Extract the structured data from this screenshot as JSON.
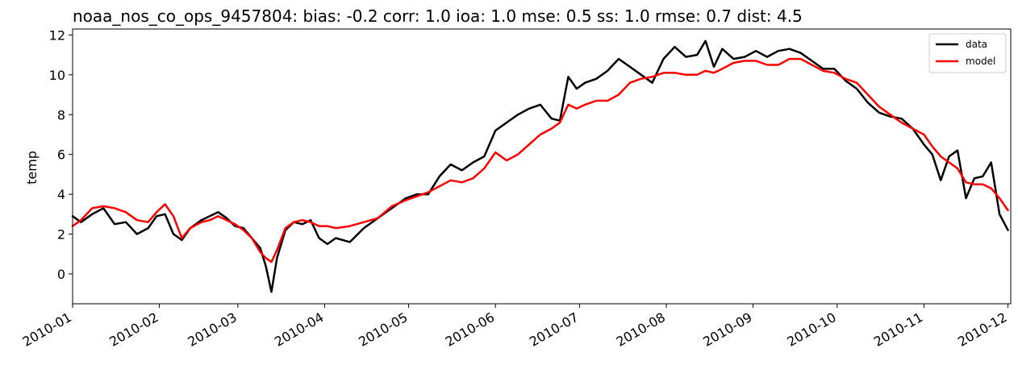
{
  "chart_data": {
    "type": "line",
    "title": "noaa_nos_co_ops_9457804: bias: -0.2  corr: 1.0  ioa: 1.0  mse: 0.5  ss: 1.0  rmse: 0.7  dist: 4.5",
    "xlabel": "",
    "ylabel": "temp",
    "xlim": [
      "2010-01-01",
      "2010-12-02"
    ],
    "ylim": [
      -1.5,
      12.3
    ],
    "x_ticks": [
      "2010-01",
      "2010-02",
      "2010-03",
      "2010-04",
      "2010-05",
      "2010-06",
      "2010-07",
      "2010-08",
      "2010-09",
      "2010-10",
      "2010-11",
      "2010-12"
    ],
    "y_ticks": [
      0,
      2,
      4,
      6,
      8,
      10,
      12
    ],
    "grid": false,
    "legend_position": "top-right",
    "series": [
      {
        "name": "data",
        "color": "#000000",
        "x": [
          "2010-01-01",
          "2010-01-04",
          "2010-01-08",
          "2010-01-12",
          "2010-01-16",
          "2010-01-20",
          "2010-01-24",
          "2010-01-28",
          "2010-01-31",
          "2010-02-03",
          "2010-02-06",
          "2010-02-09",
          "2010-02-12",
          "2010-02-16",
          "2010-02-19",
          "2010-02-22",
          "2010-02-25",
          "2010-02-28",
          "2010-03-03",
          "2010-03-06",
          "2010-03-09",
          "2010-03-11",
          "2010-03-13",
          "2010-03-15",
          "2010-03-18",
          "2010-03-21",
          "2010-03-24",
          "2010-03-27",
          "2010-03-30",
          "2010-04-02",
          "2010-04-05",
          "2010-04-10",
          "2010-04-15",
          "2010-04-20",
          "2010-04-25",
          "2010-04-30",
          "2010-05-04",
          "2010-05-08",
          "2010-05-12",
          "2010-05-16",
          "2010-05-20",
          "2010-05-24",
          "2010-05-28",
          "2010-06-01",
          "2010-06-05",
          "2010-06-09",
          "2010-06-13",
          "2010-06-17",
          "2010-06-21",
          "2010-06-24",
          "2010-06-27",
          "2010-06-30",
          "2010-07-03",
          "2010-07-07",
          "2010-07-11",
          "2010-07-15",
          "2010-07-19",
          "2010-07-23",
          "2010-07-27",
          "2010-07-31",
          "2010-08-04",
          "2010-08-08",
          "2010-08-12",
          "2010-08-15",
          "2010-08-18",
          "2010-08-21",
          "2010-08-25",
          "2010-08-29",
          "2010-09-02",
          "2010-09-06",
          "2010-09-10",
          "2010-09-14",
          "2010-09-18",
          "2010-09-22",
          "2010-09-26",
          "2010-09-30",
          "2010-10-04",
          "2010-10-08",
          "2010-10-12",
          "2010-10-16",
          "2010-10-20",
          "2010-10-24",
          "2010-10-28",
          "2010-11-01",
          "2010-11-04",
          "2010-11-07",
          "2010-11-10",
          "2010-11-13",
          "2010-11-16",
          "2010-11-19",
          "2010-11-22",
          "2010-11-25",
          "2010-11-28",
          "2010-12-01"
        ],
        "values": [
          2.9,
          2.6,
          3.0,
          3.3,
          2.5,
          2.6,
          2.0,
          2.3,
          2.9,
          3.0,
          2.0,
          1.7,
          2.3,
          2.7,
          2.9,
          3.1,
          2.8,
          2.4,
          2.3,
          1.8,
          1.3,
          0.4,
          -0.9,
          0.8,
          2.2,
          2.6,
          2.5,
          2.7,
          1.8,
          1.5,
          1.8,
          1.6,
          2.3,
          2.8,
          3.3,
          3.8,
          4.0,
          4.0,
          4.9,
          5.5,
          5.2,
          5.6,
          5.9,
          7.2,
          7.6,
          8.0,
          8.3,
          8.5,
          7.8,
          7.7,
          9.9,
          9.3,
          9.6,
          9.8,
          10.2,
          10.8,
          10.4,
          10.0,
          9.6,
          10.8,
          11.4,
          10.9,
          11.0,
          11.7,
          10.4,
          11.3,
          10.8,
          10.9,
          11.2,
          10.9,
          11.2,
          11.3,
          11.1,
          10.7,
          10.3,
          10.3,
          9.7,
          9.3,
          8.6,
          8.1,
          7.9,
          7.8,
          7.3,
          6.5,
          6.0,
          4.7,
          5.9,
          6.2,
          3.8,
          4.8,
          4.9,
          5.6,
          3.0,
          2.2
        ]
      },
      {
        "name": "model",
        "color": "#ff0000",
        "x": [
          "2010-01-01",
          "2010-01-04",
          "2010-01-08",
          "2010-01-12",
          "2010-01-16",
          "2010-01-20",
          "2010-01-24",
          "2010-01-28",
          "2010-01-31",
          "2010-02-03",
          "2010-02-06",
          "2010-02-09",
          "2010-02-12",
          "2010-02-16",
          "2010-02-19",
          "2010-02-22",
          "2010-02-25",
          "2010-02-28",
          "2010-03-03",
          "2010-03-06",
          "2010-03-09",
          "2010-03-11",
          "2010-03-13",
          "2010-03-15",
          "2010-03-18",
          "2010-03-21",
          "2010-03-24",
          "2010-03-27",
          "2010-03-30",
          "2010-04-02",
          "2010-04-05",
          "2010-04-10",
          "2010-04-15",
          "2010-04-20",
          "2010-04-25",
          "2010-04-30",
          "2010-05-04",
          "2010-05-08",
          "2010-05-12",
          "2010-05-16",
          "2010-05-20",
          "2010-05-24",
          "2010-05-28",
          "2010-06-01",
          "2010-06-05",
          "2010-06-09",
          "2010-06-13",
          "2010-06-17",
          "2010-06-21",
          "2010-06-24",
          "2010-06-27",
          "2010-06-30",
          "2010-07-03",
          "2010-07-07",
          "2010-07-11",
          "2010-07-15",
          "2010-07-19",
          "2010-07-23",
          "2010-07-27",
          "2010-07-31",
          "2010-08-04",
          "2010-08-08",
          "2010-08-12",
          "2010-08-15",
          "2010-08-18",
          "2010-08-21",
          "2010-08-25",
          "2010-08-29",
          "2010-09-02",
          "2010-09-06",
          "2010-09-10",
          "2010-09-14",
          "2010-09-18",
          "2010-09-22",
          "2010-09-26",
          "2010-09-30",
          "2010-10-04",
          "2010-10-08",
          "2010-10-12",
          "2010-10-16",
          "2010-10-20",
          "2010-10-24",
          "2010-10-28",
          "2010-11-01",
          "2010-11-04",
          "2010-11-07",
          "2010-11-10",
          "2010-11-13",
          "2010-11-16",
          "2010-11-19",
          "2010-11-22",
          "2010-11-25",
          "2010-11-28",
          "2010-12-01"
        ],
        "values": [
          2.4,
          2.7,
          3.3,
          3.4,
          3.3,
          3.1,
          2.7,
          2.6,
          3.1,
          3.5,
          2.9,
          1.8,
          2.3,
          2.6,
          2.7,
          2.9,
          2.7,
          2.5,
          2.2,
          1.8,
          1.1,
          0.8,
          0.6,
          1.2,
          2.3,
          2.6,
          2.7,
          2.6,
          2.4,
          2.4,
          2.3,
          2.4,
          2.6,
          2.8,
          3.4,
          3.7,
          3.9,
          4.1,
          4.4,
          4.7,
          4.6,
          4.8,
          5.3,
          6.1,
          5.7,
          6.0,
          6.5,
          7.0,
          7.3,
          7.6,
          8.5,
          8.3,
          8.5,
          8.7,
          8.7,
          9.0,
          9.6,
          9.8,
          9.9,
          10.1,
          10.1,
          10.0,
          10.0,
          10.2,
          10.1,
          10.3,
          10.6,
          10.7,
          10.7,
          10.5,
          10.5,
          10.8,
          10.8,
          10.5,
          10.2,
          10.1,
          9.8,
          9.6,
          9.0,
          8.4,
          8.0,
          7.6,
          7.3,
          7.0,
          6.4,
          5.9,
          5.6,
          5.3,
          4.6,
          4.5,
          4.5,
          4.3,
          3.8,
          3.2
        ]
      }
    ]
  }
}
